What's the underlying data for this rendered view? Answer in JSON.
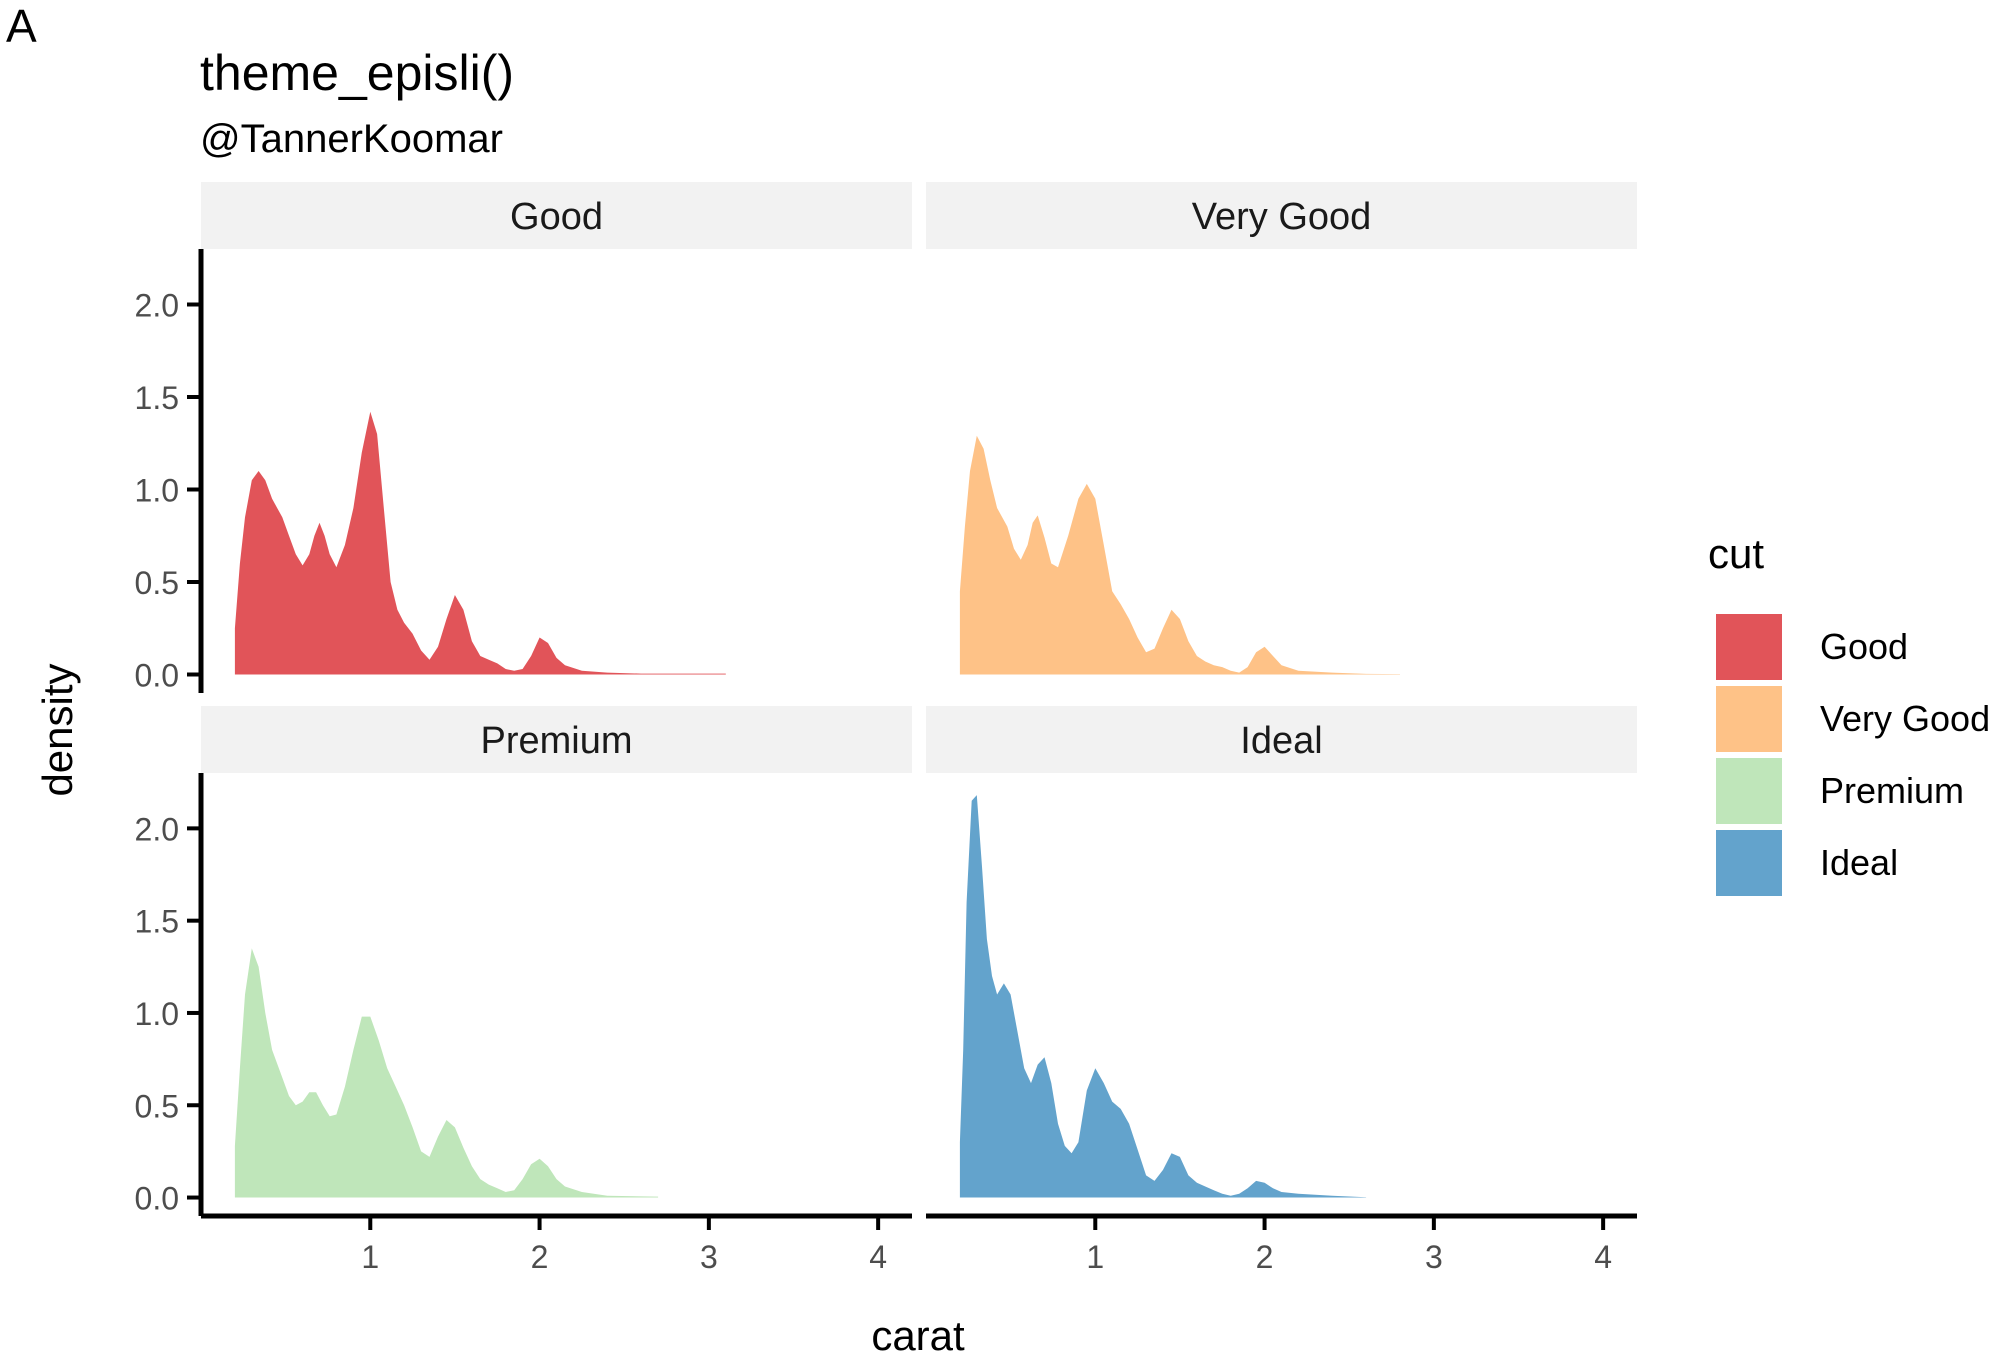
{
  "panel_tag": "A",
  "chart_data": {
    "type": "area",
    "title": "theme_episli()",
    "subtitle": "@TannerKoomar",
    "xlabel": "carat",
    "ylabel": "density",
    "xlim": [
      0.0,
      4.2
    ],
    "ylim": [
      -0.1,
      2.3
    ],
    "x_ticks": [
      1,
      2,
      3,
      4
    ],
    "y_ticks": [
      0.0,
      0.5,
      1.0,
      1.5,
      2.0
    ],
    "y_tick_labels": [
      "0.0",
      "0.5",
      "1.0",
      "1.5",
      "2.0"
    ],
    "facet_layout": "2x2",
    "legend": {
      "title": "cut",
      "position": "right"
    },
    "series": [
      {
        "name": "Good",
        "color": "#E15459",
        "points": [
          [
            0.2,
            0.25
          ],
          [
            0.23,
            0.6
          ],
          [
            0.26,
            0.85
          ],
          [
            0.3,
            1.05
          ],
          [
            0.34,
            1.1
          ],
          [
            0.38,
            1.05
          ],
          [
            0.42,
            0.95
          ],
          [
            0.48,
            0.85
          ],
          [
            0.52,
            0.75
          ],
          [
            0.56,
            0.65
          ],
          [
            0.6,
            0.59
          ],
          [
            0.64,
            0.65
          ],
          [
            0.67,
            0.75
          ],
          [
            0.7,
            0.82
          ],
          [
            0.73,
            0.75
          ],
          [
            0.76,
            0.65
          ],
          [
            0.8,
            0.58
          ],
          [
            0.85,
            0.7
          ],
          [
            0.9,
            0.9
          ],
          [
            0.95,
            1.2
          ],
          [
            1.0,
            1.42
          ],
          [
            1.04,
            1.3
          ],
          [
            1.08,
            0.9
          ],
          [
            1.12,
            0.5
          ],
          [
            1.16,
            0.35
          ],
          [
            1.2,
            0.28
          ],
          [
            1.25,
            0.22
          ],
          [
            1.3,
            0.13
          ],
          [
            1.35,
            0.08
          ],
          [
            1.4,
            0.15
          ],
          [
            1.45,
            0.3
          ],
          [
            1.5,
            0.43
          ],
          [
            1.55,
            0.35
          ],
          [
            1.6,
            0.18
          ],
          [
            1.65,
            0.1
          ],
          [
            1.7,
            0.08
          ],
          [
            1.75,
            0.06
          ],
          [
            1.8,
            0.03
          ],
          [
            1.85,
            0.02
          ],
          [
            1.9,
            0.03
          ],
          [
            1.95,
            0.1
          ],
          [
            2.0,
            0.2
          ],
          [
            2.05,
            0.17
          ],
          [
            2.1,
            0.09
          ],
          [
            2.15,
            0.05
          ],
          [
            2.25,
            0.02
          ],
          [
            2.4,
            0.01
          ],
          [
            2.6,
            0.005
          ],
          [
            3.1,
            0.005
          ]
        ]
      },
      {
        "name": "Very Good",
        "color": "#FEC287",
        "points": [
          [
            0.2,
            0.45
          ],
          [
            0.23,
            0.8
          ],
          [
            0.26,
            1.1
          ],
          [
            0.3,
            1.29
          ],
          [
            0.34,
            1.22
          ],
          [
            0.38,
            1.05
          ],
          [
            0.42,
            0.9
          ],
          [
            0.48,
            0.8
          ],
          [
            0.52,
            0.68
          ],
          [
            0.56,
            0.62
          ],
          [
            0.6,
            0.7
          ],
          [
            0.63,
            0.82
          ],
          [
            0.66,
            0.86
          ],
          [
            0.7,
            0.74
          ],
          [
            0.74,
            0.6
          ],
          [
            0.78,
            0.58
          ],
          [
            0.84,
            0.75
          ],
          [
            0.9,
            0.95
          ],
          [
            0.95,
            1.03
          ],
          [
            1.0,
            0.95
          ],
          [
            1.05,
            0.7
          ],
          [
            1.1,
            0.45
          ],
          [
            1.15,
            0.38
          ],
          [
            1.2,
            0.3
          ],
          [
            1.25,
            0.2
          ],
          [
            1.3,
            0.12
          ],
          [
            1.35,
            0.14
          ],
          [
            1.4,
            0.25
          ],
          [
            1.45,
            0.35
          ],
          [
            1.5,
            0.3
          ],
          [
            1.55,
            0.18
          ],
          [
            1.6,
            0.1
          ],
          [
            1.65,
            0.07
          ],
          [
            1.7,
            0.05
          ],
          [
            1.75,
            0.04
          ],
          [
            1.8,
            0.02
          ],
          [
            1.85,
            0.01
          ],
          [
            1.9,
            0.04
          ],
          [
            1.95,
            0.12
          ],
          [
            2.0,
            0.15
          ],
          [
            2.05,
            0.1
          ],
          [
            2.1,
            0.05
          ],
          [
            2.2,
            0.02
          ],
          [
            2.4,
            0.01
          ],
          [
            2.6,
            0.003
          ],
          [
            2.8,
            0.002
          ]
        ]
      },
      {
        "name": "Premium",
        "color": "#BFE6BA",
        "points": [
          [
            0.2,
            0.28
          ],
          [
            0.23,
            0.7
          ],
          [
            0.26,
            1.1
          ],
          [
            0.3,
            1.35
          ],
          [
            0.34,
            1.25
          ],
          [
            0.38,
            1.0
          ],
          [
            0.42,
            0.8
          ],
          [
            0.48,
            0.65
          ],
          [
            0.52,
            0.55
          ],
          [
            0.56,
            0.5
          ],
          [
            0.6,
            0.52
          ],
          [
            0.64,
            0.57
          ],
          [
            0.68,
            0.57
          ],
          [
            0.72,
            0.5
          ],
          [
            0.76,
            0.44
          ],
          [
            0.8,
            0.45
          ],
          [
            0.85,
            0.6
          ],
          [
            0.9,
            0.8
          ],
          [
            0.95,
            0.98
          ],
          [
            1.0,
            0.98
          ],
          [
            1.05,
            0.85
          ],
          [
            1.1,
            0.7
          ],
          [
            1.15,
            0.6
          ],
          [
            1.2,
            0.5
          ],
          [
            1.25,
            0.38
          ],
          [
            1.3,
            0.25
          ],
          [
            1.35,
            0.22
          ],
          [
            1.4,
            0.33
          ],
          [
            1.45,
            0.42
          ],
          [
            1.5,
            0.38
          ],
          [
            1.55,
            0.27
          ],
          [
            1.6,
            0.17
          ],
          [
            1.65,
            0.1
          ],
          [
            1.7,
            0.07
          ],
          [
            1.75,
            0.05
          ],
          [
            1.8,
            0.03
          ],
          [
            1.85,
            0.04
          ],
          [
            1.9,
            0.1
          ],
          [
            1.95,
            0.18
          ],
          [
            2.0,
            0.21
          ],
          [
            2.05,
            0.17
          ],
          [
            2.1,
            0.1
          ],
          [
            2.15,
            0.06
          ],
          [
            2.25,
            0.03
          ],
          [
            2.4,
            0.01
          ],
          [
            2.7,
            0.005
          ]
        ]
      },
      {
        "name": "Ideal",
        "color": "#63A3CC",
        "points": [
          [
            0.2,
            0.3
          ],
          [
            0.22,
            0.8
          ],
          [
            0.24,
            1.6
          ],
          [
            0.27,
            2.15
          ],
          [
            0.3,
            2.18
          ],
          [
            0.33,
            1.8
          ],
          [
            0.36,
            1.4
          ],
          [
            0.39,
            1.2
          ],
          [
            0.42,
            1.1
          ],
          [
            0.46,
            1.16
          ],
          [
            0.5,
            1.1
          ],
          [
            0.54,
            0.9
          ],
          [
            0.58,
            0.7
          ],
          [
            0.62,
            0.62
          ],
          [
            0.66,
            0.72
          ],
          [
            0.7,
            0.76
          ],
          [
            0.74,
            0.62
          ],
          [
            0.78,
            0.4
          ],
          [
            0.82,
            0.28
          ],
          [
            0.86,
            0.24
          ],
          [
            0.9,
            0.3
          ],
          [
            0.95,
            0.58
          ],
          [
            1.0,
            0.7
          ],
          [
            1.05,
            0.62
          ],
          [
            1.1,
            0.52
          ],
          [
            1.15,
            0.48
          ],
          [
            1.2,
            0.4
          ],
          [
            1.25,
            0.26
          ],
          [
            1.3,
            0.12
          ],
          [
            1.35,
            0.09
          ],
          [
            1.4,
            0.15
          ],
          [
            1.45,
            0.24
          ],
          [
            1.5,
            0.22
          ],
          [
            1.55,
            0.12
          ],
          [
            1.6,
            0.08
          ],
          [
            1.65,
            0.06
          ],
          [
            1.7,
            0.04
          ],
          [
            1.75,
            0.02
          ],
          [
            1.8,
            0.01
          ],
          [
            1.85,
            0.02
          ],
          [
            1.9,
            0.05
          ],
          [
            1.95,
            0.09
          ],
          [
            2.0,
            0.08
          ],
          [
            2.05,
            0.05
          ],
          [
            2.1,
            0.03
          ],
          [
            2.2,
            0.02
          ],
          [
            2.4,
            0.01
          ],
          [
            2.6,
            0.002
          ]
        ]
      }
    ]
  }
}
